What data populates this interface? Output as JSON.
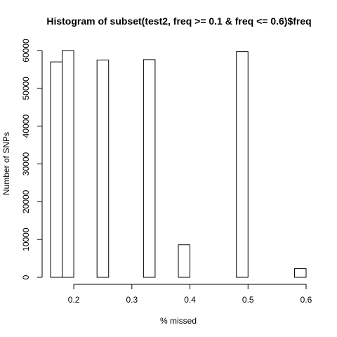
{
  "chart_data": {
    "type": "bar",
    "title": "Histogram of subset(test2, freq >= 0.1 & freq <= 0.6)$freq",
    "xlabel": "% missed",
    "ylabel": "Number of SNPs",
    "xlim": [
      0.16,
      0.6
    ],
    "ylim": [
      0,
      60000
    ],
    "x_ticks": [
      {
        "value": 0.2,
        "label": "0.2"
      },
      {
        "value": 0.3,
        "label": "0.3"
      },
      {
        "value": 0.4,
        "label": "0.4"
      },
      {
        "value": 0.5,
        "label": "0.5"
      },
      {
        "value": 0.6,
        "label": "0.6"
      }
    ],
    "y_ticks": [
      {
        "value": 0,
        "label": "0"
      },
      {
        "value": 10000,
        "label": "10000"
      },
      {
        "value": 20000,
        "label": "20000"
      },
      {
        "value": 30000,
        "label": "30000"
      },
      {
        "value": 40000,
        "label": "40000"
      },
      {
        "value": 50000,
        "label": "50000"
      },
      {
        "value": 60000,
        "label": "60000"
      }
    ],
    "bins": [
      {
        "x0": 0.16,
        "x1": 0.18,
        "count": 57000
      },
      {
        "x0": 0.18,
        "x1": 0.2,
        "count": 60000
      },
      {
        "x0": 0.2,
        "x1": 0.22,
        "count": 0
      },
      {
        "x0": 0.22,
        "x1": 0.24,
        "count": 0
      },
      {
        "x0": 0.24,
        "x1": 0.26,
        "count": 57500
      },
      {
        "x0": 0.26,
        "x1": 0.28,
        "count": 0
      },
      {
        "x0": 0.28,
        "x1": 0.3,
        "count": 0
      },
      {
        "x0": 0.3,
        "x1": 0.32,
        "count": 0
      },
      {
        "x0": 0.32,
        "x1": 0.34,
        "count": 57600
      },
      {
        "x0": 0.34,
        "x1": 0.36,
        "count": 0
      },
      {
        "x0": 0.36,
        "x1": 0.38,
        "count": 0
      },
      {
        "x0": 0.38,
        "x1": 0.4,
        "count": 8600
      },
      {
        "x0": 0.4,
        "x1": 0.42,
        "count": 0
      },
      {
        "x0": 0.42,
        "x1": 0.44,
        "count": 0
      },
      {
        "x0": 0.44,
        "x1": 0.46,
        "count": 0
      },
      {
        "x0": 0.46,
        "x1": 0.48,
        "count": 0
      },
      {
        "x0": 0.48,
        "x1": 0.5,
        "count": 59700
      },
      {
        "x0": 0.5,
        "x1": 0.52,
        "count": 0
      },
      {
        "x0": 0.52,
        "x1": 0.54,
        "count": 0
      },
      {
        "x0": 0.54,
        "x1": 0.56,
        "count": 0
      },
      {
        "x0": 0.56,
        "x1": 0.58,
        "count": 0
      },
      {
        "x0": 0.58,
        "x1": 0.6,
        "count": 2300
      }
    ],
    "grid": false,
    "legend": "none",
    "bar_fill": "#ffffff",
    "bar_stroke": "#000000"
  }
}
